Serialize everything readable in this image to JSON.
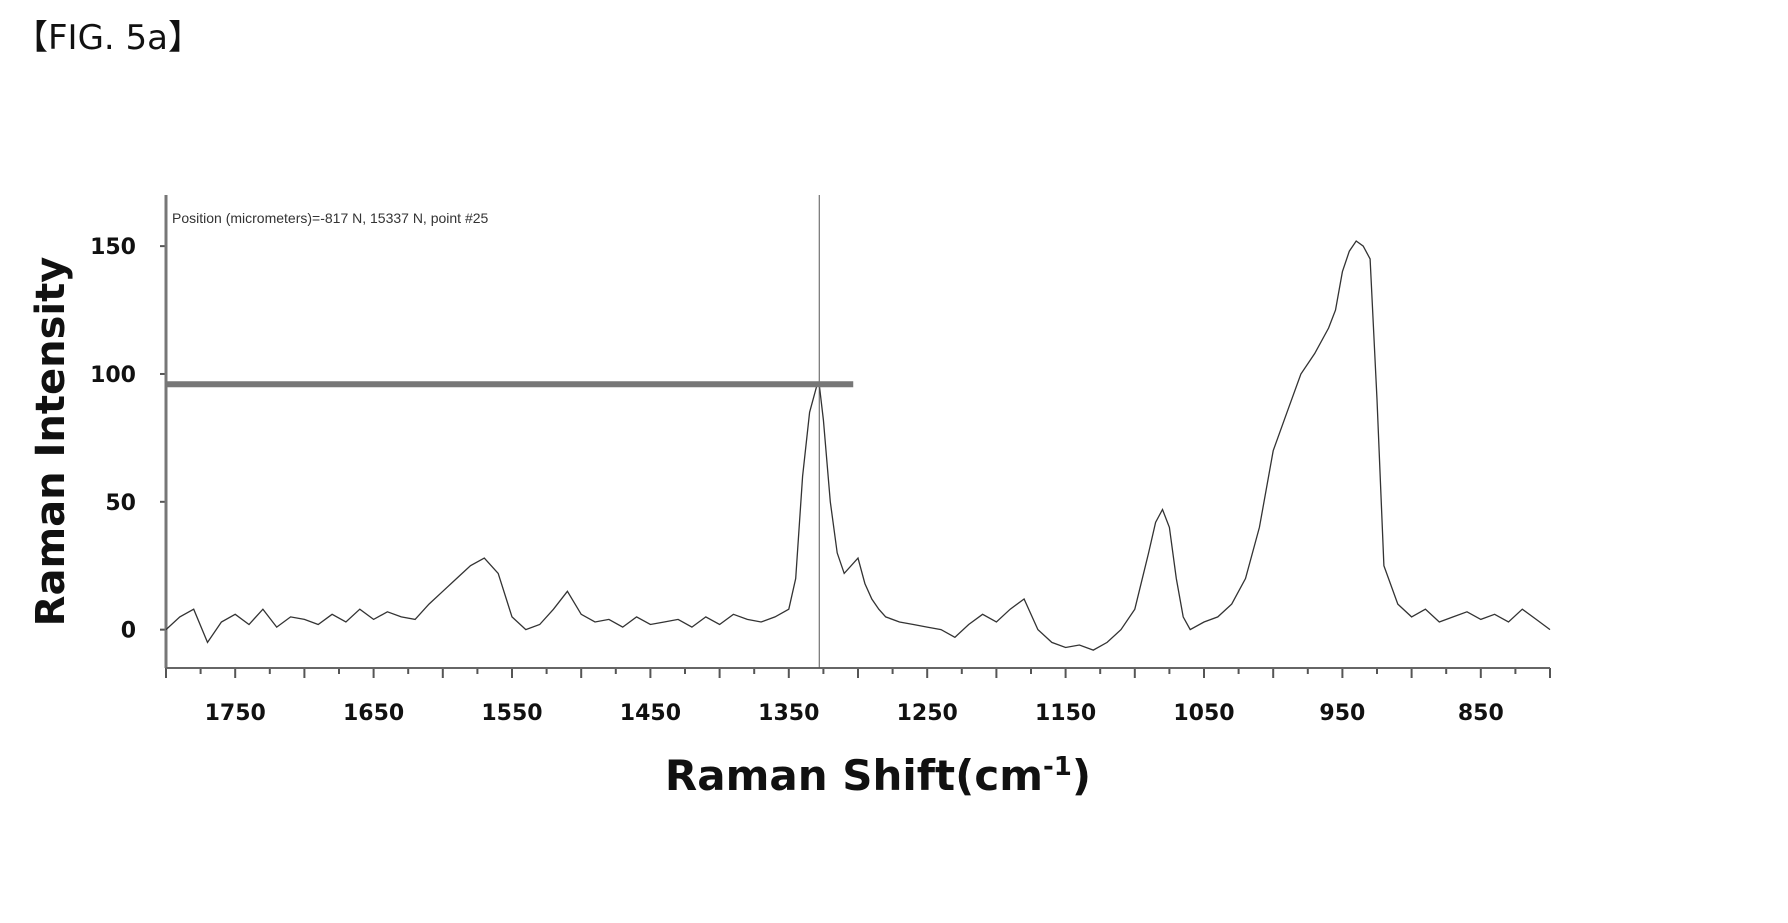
{
  "figure_label": "【FIG. 5a】",
  "chart_data": {
    "type": "line",
    "title": "",
    "xlabel": "Raman Shift(cm",
    "xlabel_sup": "-1",
    "xlabel_close": ")",
    "ylabel": "Raman Intensity",
    "annotation": "Position (micrometers)=-817 N, 15337 N, point #25",
    "x_reversed": true,
    "xlim": [
      1800,
      800
    ],
    "ylim": [
      -15,
      170
    ],
    "x_ticks": [
      1750,
      1650,
      1550,
      1450,
      1350,
      1250,
      1150,
      1050,
      950,
      850
    ],
    "y_ticks": [
      0,
      50,
      100,
      150
    ],
    "cursor": {
      "x": 1328,
      "y": 96
    },
    "line_color": "#333333",
    "series": [
      {
        "x": [
          1800,
          1790,
          1780,
          1770,
          1760,
          1750,
          1740,
          1730,
          1720,
          1710,
          1700,
          1690,
          1680,
          1670,
          1660,
          1650,
          1640,
          1630,
          1620,
          1610,
          1600,
          1590,
          1580,
          1570,
          1560,
          1550,
          1540,
          1530,
          1520,
          1510,
          1500,
          1490,
          1480,
          1470,
          1460,
          1450,
          1440,
          1430,
          1420,
          1410,
          1400,
          1390,
          1380,
          1370,
          1360,
          1350,
          1345,
          1340,
          1335,
          1330,
          1328,
          1325,
          1320,
          1315,
          1310,
          1300,
          1295,
          1290,
          1285,
          1280,
          1270,
          1260,
          1250,
          1240,
          1230,
          1220,
          1210,
          1200,
          1190,
          1180,
          1170,
          1160,
          1150,
          1140,
          1130,
          1120,
          1110,
          1100,
          1090,
          1085,
          1080,
          1075,
          1070,
          1065,
          1060,
          1050,
          1040,
          1030,
          1020,
          1010,
          1000,
          990,
          980,
          970,
          960,
          955,
          950,
          945,
          940,
          935,
          930,
          925,
          920,
          910,
          900,
          890,
          880,
          870,
          860,
          850,
          840,
          830,
          820,
          810,
          800
        ],
        "y": [
          0,
          5,
          8,
          -5,
          3,
          6,
          2,
          8,
          1,
          5,
          4,
          2,
          6,
          3,
          8,
          4,
          7,
          5,
          4,
          10,
          15,
          20,
          25,
          28,
          22,
          5,
          0,
          2,
          8,
          15,
          6,
          3,
          4,
          1,
          5,
          2,
          3,
          4,
          1,
          5,
          2,
          6,
          4,
          3,
          5,
          8,
          20,
          60,
          85,
          95,
          96,
          82,
          50,
          30,
          22,
          28,
          18,
          12,
          8,
          5,
          3,
          2,
          1,
          0,
          -3,
          2,
          6,
          3,
          8,
          12,
          0,
          -5,
          -7,
          -6,
          -8,
          -5,
          0,
          8,
          30,
          42,
          47,
          40,
          20,
          5,
          0,
          3,
          5,
          10,
          20,
          40,
          70,
          85,
          100,
          108,
          118,
          125,
          140,
          148,
          152,
          150,
          145,
          90,
          25,
          10,
          5,
          8,
          3,
          5,
          7,
          4,
          6,
          3,
          8,
          4,
          0
        ]
      }
    ]
  }
}
